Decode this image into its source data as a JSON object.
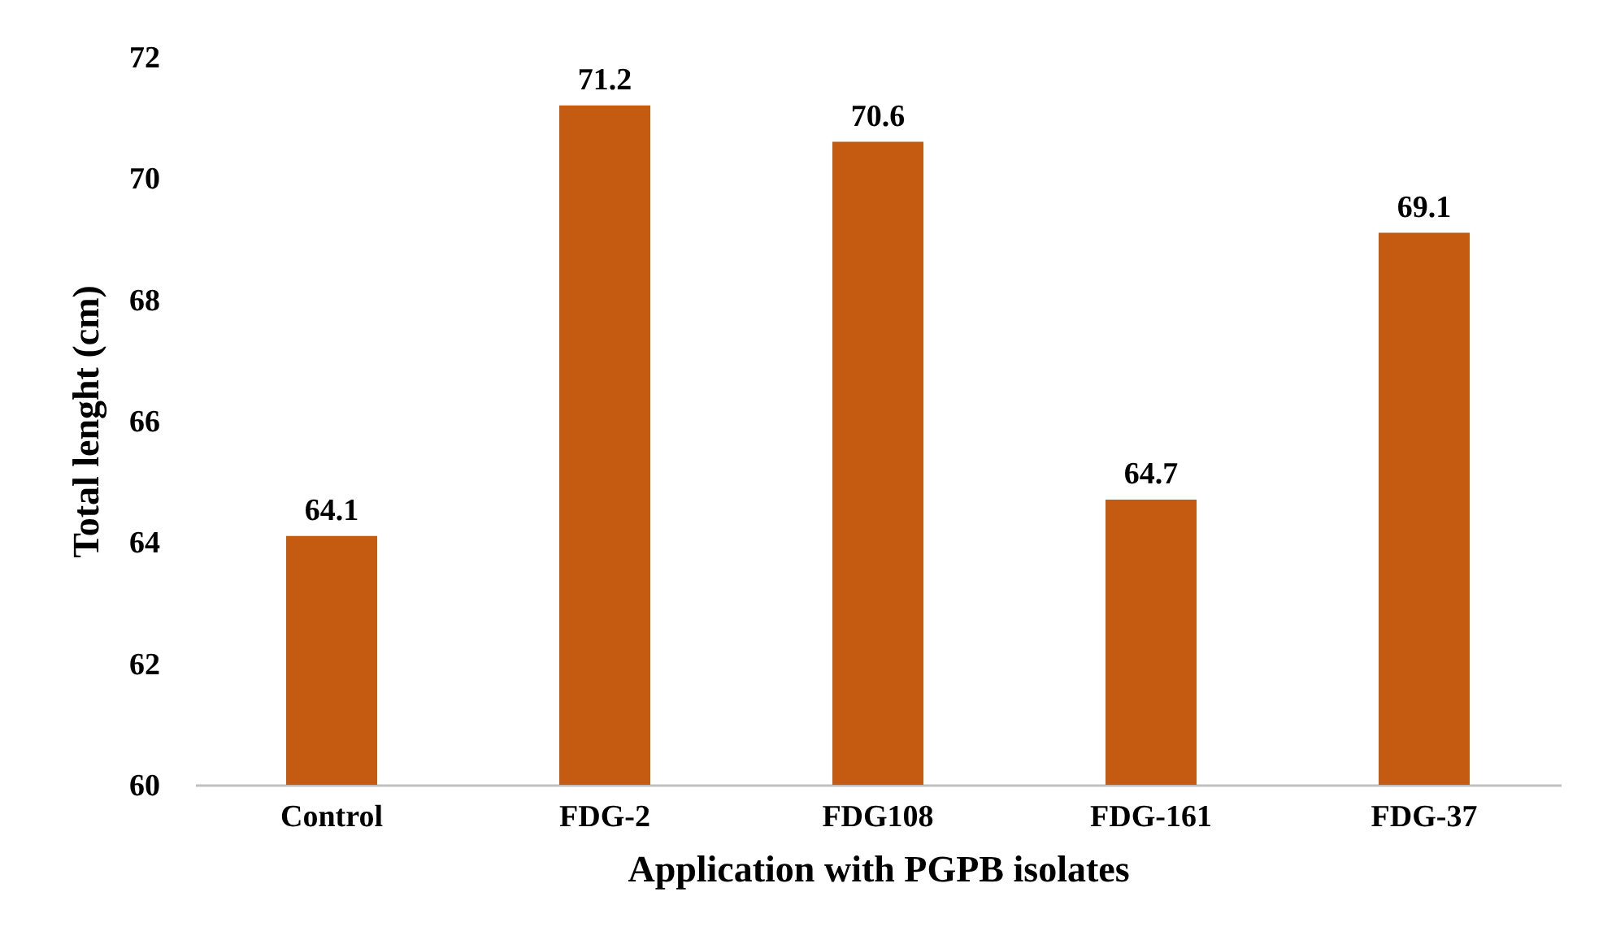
{
  "chart_data": {
    "type": "bar",
    "xlabel": "Application with PGPB isolates",
    "ylabel": "Total lenght (cm)",
    "categories": [
      "Control",
      "FDG-2",
      "FDG108",
      "FDG-161",
      "FDG-37"
    ],
    "values": [
      64.1,
      71.2,
      70.6,
      64.7,
      69.1
    ],
    "color": "#c55a11",
    "ylim": [
      60,
      72
    ],
    "yticks": [
      60,
      62,
      64,
      66,
      68,
      70,
      72
    ],
    "grid": false,
    "data_labels": true
  }
}
